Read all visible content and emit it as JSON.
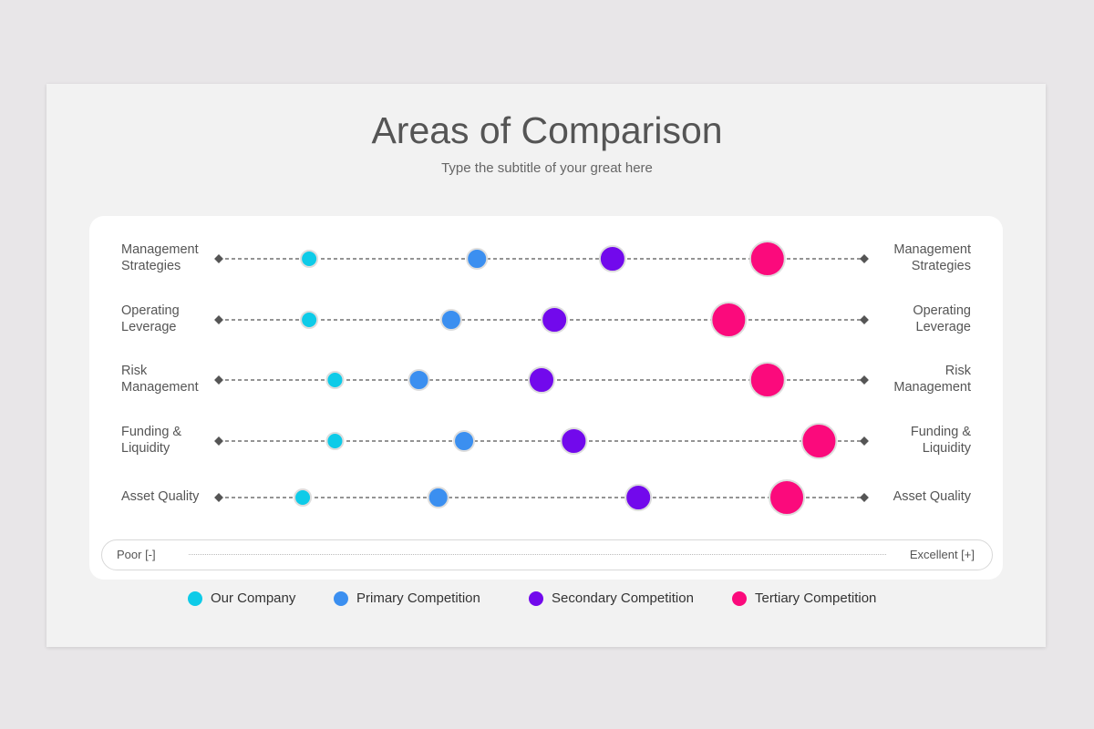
{
  "title": "Areas of Comparison",
  "subtitle": "Type the subtitle of your great here",
  "chart_data": {
    "type": "scatter",
    "title": "Areas of Comparison",
    "categories": [
      "Management Strategies",
      "Operating Leverage",
      "Risk Management",
      "Funding & Liquidity",
      "Asset Quality"
    ],
    "xlim": [
      0,
      100
    ],
    "scale_labels": {
      "low": "Poor [-]",
      "high": "Excellent [+]"
    },
    "legend_position": "bottom",
    "series": [
      {
        "name": "Our Company",
        "color": "#0ecbe8",
        "values": [
          14,
          14,
          18,
          18,
          13
        ]
      },
      {
        "name": "Primary Competition",
        "color": "#3b8ff0",
        "values": [
          40,
          36,
          31,
          38,
          34
        ]
      },
      {
        "name": "Secondary Competition",
        "color": "#7209ec",
        "values": [
          61,
          52,
          50,
          55,
          65
        ]
      },
      {
        "name": "Tertiary Competition",
        "color": "#fb0a7c",
        "values": [
          85,
          79,
          85,
          93,
          88
        ]
      }
    ]
  }
}
